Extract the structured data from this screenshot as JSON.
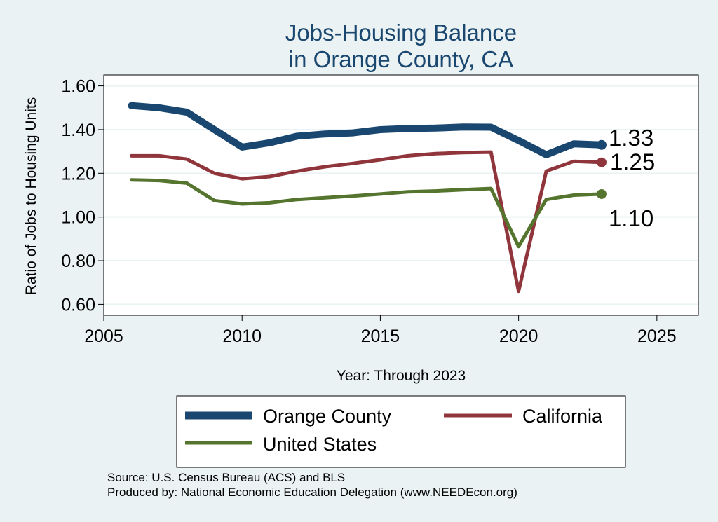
{
  "chart_data": {
    "type": "line",
    "title": [
      "Jobs-Housing Balance",
      "in Orange County, CA"
    ],
    "xlabel": "Year: Through 2023",
    "ylabel": "Ratio of Jobs to Housing Units",
    "xlim": [
      2005,
      2026.5
    ],
    "ylim": [
      0.55,
      1.65
    ],
    "xticks": [
      2005,
      2010,
      2015,
      2020,
      2025
    ],
    "yticks": [
      0.6,
      0.8,
      1.0,
      1.2,
      1.4,
      1.6
    ],
    "ytick_labels": [
      "0.60",
      "0.80",
      "1.00",
      "1.20",
      "1.40",
      "1.60"
    ],
    "grid": "horizontal",
    "legend_position": "bottom",
    "x": [
      2006,
      2007,
      2008,
      2009,
      2010,
      2011,
      2012,
      2013,
      2014,
      2015,
      2016,
      2017,
      2018,
      2019,
      2020,
      2021,
      2022,
      2023
    ],
    "series": [
      {
        "name": "Orange County",
        "color": "#1a476f",
        "values": [
          1.51,
          1.5,
          1.48,
          1.4,
          1.32,
          1.34,
          1.37,
          1.38,
          1.385,
          1.4,
          1.405,
          1.407,
          1.412,
          1.411,
          1.35,
          1.285,
          1.335,
          1.33
        ],
        "end_label": "1.33"
      },
      {
        "name": "California",
        "color": "#90353b",
        "values": [
          1.28,
          1.28,
          1.265,
          1.2,
          1.175,
          1.185,
          1.21,
          1.23,
          1.245,
          1.262,
          1.28,
          1.29,
          1.295,
          1.297,
          0.66,
          1.21,
          1.255,
          1.25
        ],
        "end_label": "1.25"
      },
      {
        "name": "United States",
        "color": "#55752f",
        "values": [
          1.17,
          1.167,
          1.155,
          1.075,
          1.06,
          1.065,
          1.08,
          1.088,
          1.096,
          1.105,
          1.115,
          1.119,
          1.125,
          1.13,
          0.865,
          1.08,
          1.1,
          1.105
        ],
        "end_label": "1.10"
      }
    ]
  },
  "footer": {
    "source": "Source: U.S. Census Bureau (ACS) and BLS",
    "produced": "Produced by: National Economic Education Delegation (www.NEEDEcon.org)"
  }
}
